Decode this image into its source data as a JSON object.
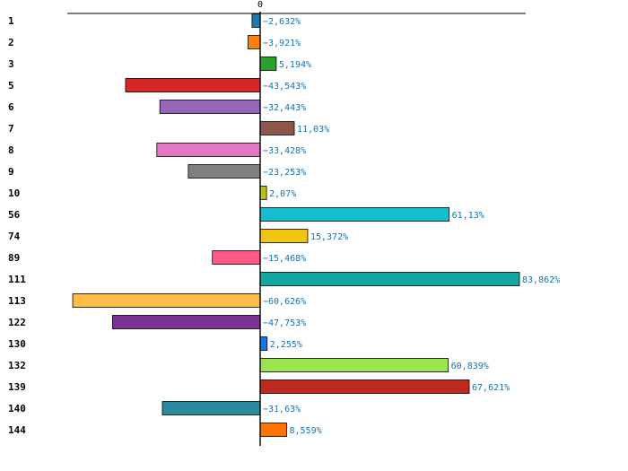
{
  "chart_data": {
    "type": "bar",
    "orientation": "horizontal",
    "title": "",
    "xlabel": "",
    "ylabel": "",
    "xlim": [
      -60.626,
      83.862
    ],
    "zero_tick_label": "0",
    "grid": false,
    "legend": "none",
    "bars": [
      {
        "category": "1",
        "value": -2.632,
        "label": "−2,632%",
        "color": "#1f77b4"
      },
      {
        "category": "2",
        "value": -3.921,
        "label": "−3,921%",
        "color": "#ff7f0e"
      },
      {
        "category": "3",
        "value": 5.194,
        "label": "5,194%",
        "color": "#2ca02c"
      },
      {
        "category": "5",
        "value": -43.543,
        "label": "−43,543%",
        "color": "#d62728"
      },
      {
        "category": "6",
        "value": -32.443,
        "label": "−32,443%",
        "color": "#9467bd"
      },
      {
        "category": "7",
        "value": 11.03,
        "label": "11,03%",
        "color": "#8c564b"
      },
      {
        "category": "8",
        "value": -33.428,
        "label": "−33,428%",
        "color": "#e377c2"
      },
      {
        "category": "9",
        "value": -23.253,
        "label": "−23,253%",
        "color": "#7f7f7f"
      },
      {
        "category": "10",
        "value": 2.07,
        "label": "2,07%",
        "color": "#bcbd22"
      },
      {
        "category": "56",
        "value": 61.13,
        "label": "61,13%",
        "color": "#17becf"
      },
      {
        "category": "74",
        "value": 15.372,
        "label": "15,372%",
        "color": "#f1c40f"
      },
      {
        "category": "89",
        "value": -15.468,
        "label": "−15,468%",
        "color": "#ff5a8a"
      },
      {
        "category": "111",
        "value": 83.862,
        "label": "83,862%",
        "color": "#12a8a0"
      },
      {
        "category": "113",
        "value": -60.626,
        "label": "−60,626%",
        "color": "#ffbd45"
      },
      {
        "category": "122",
        "value": -47.753,
        "label": "−47,753%",
        "color": "#7b3294"
      },
      {
        "category": "130",
        "value": 2.255,
        "label": "2,255%",
        "color": "#1a73e8"
      },
      {
        "category": "132",
        "value": 60.839,
        "label": "60,839%",
        "color": "#99e550"
      },
      {
        "category": "139",
        "value": 67.621,
        "label": "67,621%",
        "color": "#c0291f"
      },
      {
        "category": "140",
        "value": -31.63,
        "label": "−31,63%",
        "color": "#2a8a9e"
      },
      {
        "category": "144",
        "value": 8.559,
        "label": "8,559%",
        "color": "#ff7300"
      }
    ]
  }
}
